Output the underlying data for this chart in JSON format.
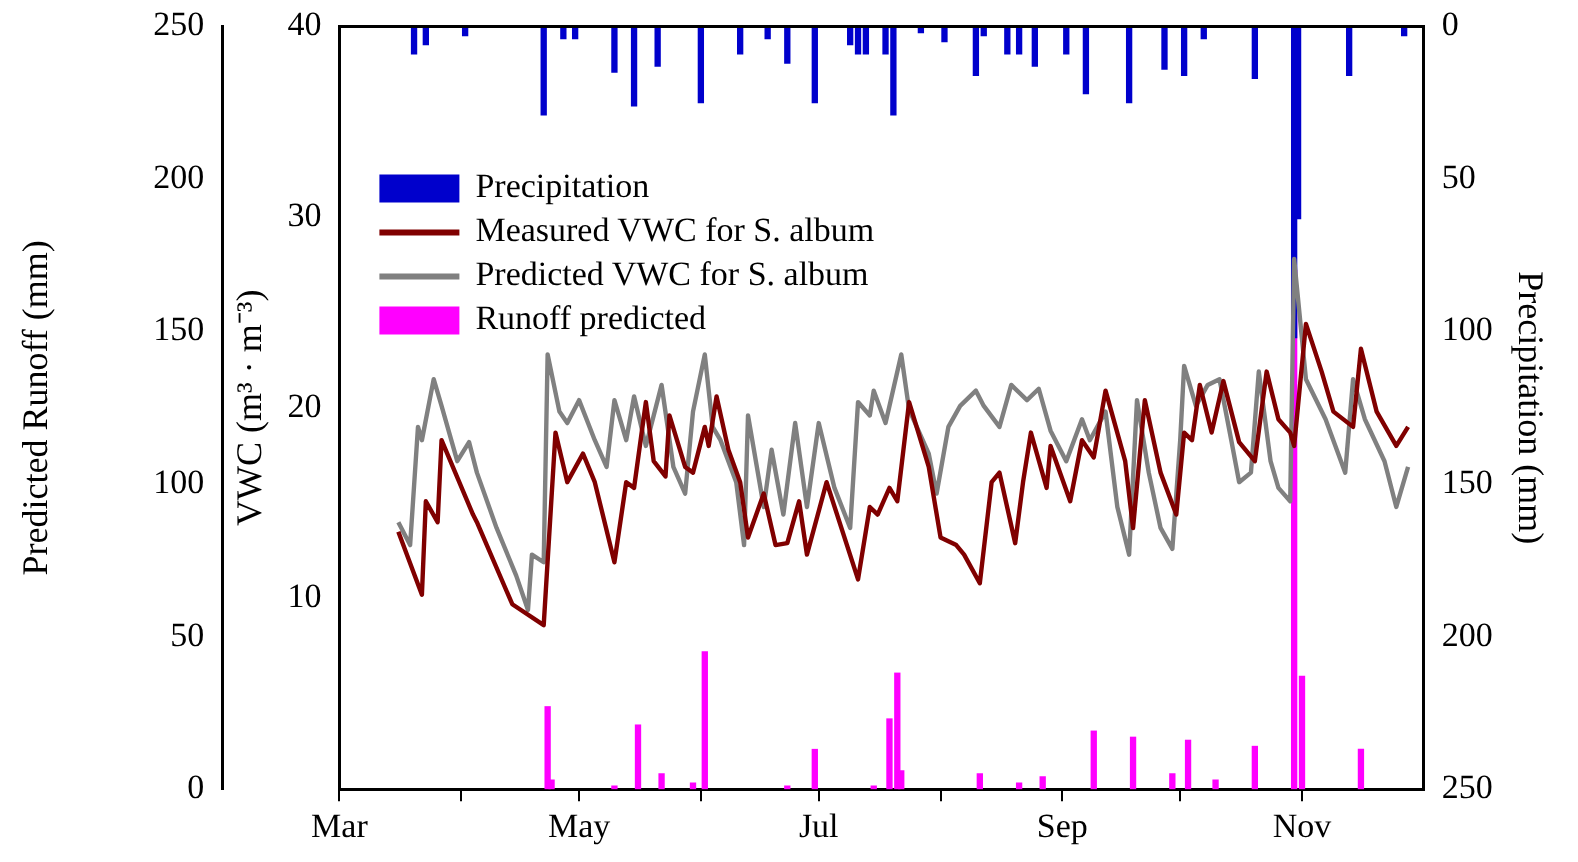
{
  "chart_data": {
    "type": "line",
    "ylabel": "VWC (m³ · m⁻³)",
    "y2label": "Precipitation (mm)",
    "y3label": "Predicted Runoff (mm)",
    "xlim": [
      "--03-01",
      "--12-02"
    ],
    "xticks": [
      {
        "value": "--03-01",
        "label": "Mar"
      },
      {
        "value": "--04-01",
        "label": null
      },
      {
        "value": "--05-01",
        "label": "May"
      },
      {
        "value": "--06-01",
        "label": null
      },
      {
        "value": "--07-01",
        "label": "Jul"
      },
      {
        "value": "--08-01",
        "label": null
      },
      {
        "value": "--09-01",
        "label": "Sep"
      },
      {
        "value": "--10-01",
        "label": null
      },
      {
        "value": "--11-01",
        "label": "Nov"
      }
    ],
    "ylim": [
      0,
      40
    ],
    "yticks": [
      10,
      20,
      30,
      40
    ],
    "y2lim": [
      250,
      0
    ],
    "y2ticks": [
      0,
      50,
      100,
      150,
      200,
      250
    ],
    "y3lim": [
      0,
      250
    ],
    "y3ticks": [
      0,
      50,
      100,
      150,
      200,
      250
    ],
    "grid": false,
    "legend": "top left",
    "marker": "none",
    "line_style": "solid",
    "series": [
      {
        "name": "Precipitation",
        "type": "bar",
        "axis": "y2",
        "color": "#0000cc",
        "x": [
          "--03-20",
          "--03-23",
          "--04-02",
          "--04-22",
          "--04-27",
          "--04-30",
          "--05-10",
          "--05-15",
          "--05-21",
          "--06-01",
          "--06-11",
          "--06-18",
          "--06-23",
          "--06-30",
          "--07-09",
          "--07-11",
          "--07-13",
          "--07-18",
          "--07-20",
          "--07-27",
          "--08-02",
          "--08-10",
          "--08-12",
          "--08-18",
          "--08-21",
          "--08-25",
          "--09-02",
          "--09-07",
          "--09-18",
          "--09-27",
          "--10-02",
          "--10-07",
          "--10-20",
          "--10-30",
          "--10-31",
          "--11-13",
          "--11-27"
        ],
        "values": [
          9,
          6,
          3,
          29,
          4,
          4,
          15,
          26,
          13,
          25,
          9,
          4,
          12,
          25,
          6,
          9,
          9,
          9,
          29,
          2,
          5,
          16,
          3,
          9,
          9,
          13,
          9,
          22,
          25,
          14,
          16,
          4,
          17,
          102,
          63,
          16,
          3
        ]
      },
      {
        "name": "Measured VWC for S. album",
        "axis": "y",
        "color": "#800000",
        "x": [
          "--03-16",
          "--03-22",
          "--03-23",
          "--03-26",
          "--03-27",
          "--04-04",
          "--04-05",
          "--04-14",
          "--04-22",
          "--04-25",
          "--04-28",
          "--05-02",
          "--05-05",
          "--05-10",
          "--05-13",
          "--05-15",
          "--05-18",
          "--05-20",
          "--05-23",
          "--05-24",
          "--05-28",
          "--05-30",
          "--06-02",
          "--06-03",
          "--06-05",
          "--06-08",
          "--06-11",
          "--06-13",
          "--06-17",
          "--06-20",
          "--06-23",
          "--06-26",
          "--06-28",
          "--07-03",
          "--07-11",
          "--07-14",
          "--07-16",
          "--07-19",
          "--07-21",
          "--07-24",
          "--07-29",
          "--08-01",
          "--08-05",
          "--08-07",
          "--08-11",
          "--08-14",
          "--08-16",
          "--08-20",
          "--08-22",
          "--08-24",
          "--08-28",
          "--08-29",
          "--09-03",
          "--09-06",
          "--09-09",
          "--09-12",
          "--09-17",
          "--09-19",
          "--09-22",
          "--09-26",
          "--09-30",
          "--10-02",
          "--10-04",
          "--10-06",
          "--10-09",
          "--10-12",
          "--10-16",
          "--10-20",
          "--10-23",
          "--10-26",
          "--10-29",
          "--10-30",
          "--11-02",
          "--11-06",
          "--11-09",
          "--11-14",
          "--11-16",
          "--11-20",
          "--11-25",
          "--11-28"
        ],
        "values": [
          13.5,
          10.2,
          15.1,
          14.0,
          18.3,
          14.4,
          14.0,
          9.7,
          8.6,
          18.7,
          16.1,
          17.6,
          16.1,
          11.9,
          16.1,
          15.8,
          20.3,
          17.2,
          16.4,
          19.6,
          16.9,
          16.6,
          19.0,
          18.0,
          20.6,
          17.8,
          16.1,
          13.2,
          15.5,
          12.8,
          12.9,
          15.1,
          12.3,
          16.1,
          11.0,
          14.8,
          14.4,
          15.8,
          15.1,
          20.3,
          16.9,
          13.2,
          12.8,
          12.3,
          10.8,
          16.1,
          16.6,
          12.9,
          16.1,
          18.7,
          15.8,
          18.0,
          15.1,
          18.3,
          17.4,
          20.9,
          17.2,
          13.7,
          20.4,
          16.6,
          14.4,
          18.7,
          18.3,
          21.2,
          18.7,
          21.4,
          18.2,
          17.2,
          21.9,
          19.4,
          18.7,
          18.0,
          24.4,
          21.9,
          19.8,
          19.0,
          23.1,
          19.8,
          18.0,
          19.0
        ]
      },
      {
        "name": "Predicted VWC for S. album",
        "axis": "y",
        "color": "#808080",
        "x": [
          "--03-16",
          "--03-19",
          "--03-21",
          "--03-22",
          "--03-25",
          "--03-27",
          "--03-31",
          "--04-03",
          "--04-05",
          "--04-10",
          "--04-15",
          "--04-18",
          "--04-19",
          "--04-22",
          "--04-23",
          "--04-26",
          "--04-28",
          "--05-01",
          "--05-05",
          "--05-08",
          "--05-10",
          "--05-13",
          "--05-15",
          "--05-18",
          "--05-22",
          "--05-25",
          "--05-28",
          "--05-30",
          "--06-02",
          "--06-04",
          "--06-06",
          "--06-10",
          "--06-12",
          "--06-13",
          "--06-17",
          "--06-19",
          "--06-22",
          "--06-25",
          "--06-28",
          "--07-01",
          "--07-05",
          "--07-09",
          "--07-11",
          "--07-14",
          "--07-15",
          "--07-18",
          "--07-19",
          "--07-22",
          "--07-24",
          "--07-29",
          "--07-31",
          "--08-03",
          "--08-06",
          "--08-10",
          "--08-12",
          "--08-16",
          "--08-19",
          "--08-23",
          "--08-26",
          "--08-29",
          "--09-02",
          "--09-06",
          "--09-08",
          "--09-12",
          "--09-15",
          "--09-18",
          "--09-20",
          "--09-23",
          "--09-26",
          "--09-29",
          "--10-01",
          "--10-02",
          "--10-05",
          "--10-08",
          "--10-11",
          "--10-14",
          "--10-16",
          "--10-19",
          "--10-21",
          "--10-24",
          "--10-26",
          "--10-29",
          "--10-30",
          "--11-02",
          "--11-07",
          "--11-12",
          "--11-14",
          "--11-17",
          "--11-22",
          "--11-25",
          "--11-28"
        ],
        "values": [
          14.0,
          12.8,
          19.0,
          18.3,
          21.5,
          20.1,
          17.2,
          18.2,
          16.6,
          13.7,
          11.2,
          9.4,
          12.3,
          11.9,
          22.8,
          19.8,
          19.2,
          20.4,
          18.3,
          16.9,
          20.4,
          18.3,
          20.6,
          18.0,
          21.2,
          16.9,
          15.5,
          19.8,
          22.8,
          19.0,
          18.3,
          16.1,
          12.8,
          19.6,
          14.8,
          17.8,
          14.4,
          19.2,
          14.8,
          19.2,
          15.8,
          13.7,
          20.3,
          19.6,
          20.9,
          19.2,
          20.1,
          22.8,
          19.9,
          17.6,
          15.5,
          19.0,
          20.1,
          20.9,
          20.1,
          19.0,
          21.2,
          20.4,
          21.0,
          18.8,
          17.2,
          19.4,
          18.3,
          19.8,
          14.8,
          12.3,
          20.4,
          16.6,
          13.7,
          12.6,
          18.3,
          22.2,
          20.1,
          21.2,
          21.5,
          18.3,
          16.1,
          16.6,
          21.9,
          17.2,
          15.8,
          15.1,
          27.8,
          21.5,
          19.4,
          16.6,
          21.5,
          19.4,
          17.2,
          14.8,
          16.9
        ]
      },
      {
        "name": "Runoff predicted",
        "type": "bar",
        "axis": "y3",
        "color": "#ff00ff",
        "x": [
          "--04-23",
          "--04-24",
          "--05-10",
          "--05-16",
          "--05-22",
          "--05-30",
          "--06-02",
          "--06-23",
          "--06-30",
          "--07-15",
          "--07-19",
          "--07-21",
          "--07-22",
          "--08-11",
          "--08-21",
          "--08-27",
          "--09-09",
          "--09-19",
          "--09-29",
          "--10-03",
          "--10-10",
          "--10-20",
          "--10-30",
          "--11-01",
          "--11-16"
        ],
        "values": [
          27,
          3,
          1,
          21,
          5,
          2,
          45,
          1,
          13,
          1,
          23,
          38,
          6,
          5,
          2,
          4,
          19,
          17,
          5,
          16,
          3,
          14,
          170,
          37,
          13
        ]
      }
    ]
  }
}
